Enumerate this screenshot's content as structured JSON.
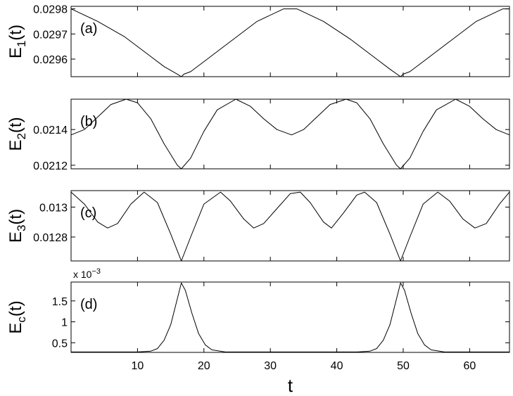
{
  "chart_data": [
    {
      "type": "line",
      "panel_label": "(a)",
      "ylabel": "E",
      "ylabel_sub": "1",
      "ylabel_suffix": "(t)",
      "xlim": [
        0,
        66
      ],
      "ylim": [
        0.02953,
        0.02981
      ],
      "yticks": [
        0.0296,
        0.0297,
        0.0298
      ],
      "ytick_labels": [
        "0.0296",
        "0.0297",
        "0.0298"
      ],
      "series": [
        {
          "x": [
            0,
            4,
            8,
            12,
            14,
            16,
            16.6,
            17,
            18,
            20,
            24,
            28,
            32,
            33.2,
            34,
            38,
            42,
            46,
            48,
            49.6,
            50,
            51,
            53,
            57,
            61,
            65,
            66
          ],
          "y": [
            0.0298,
            0.02975,
            0.02969,
            0.02961,
            0.02957,
            0.02954,
            0.02953,
            0.02954,
            0.02955,
            0.02959,
            0.02967,
            0.02975,
            0.0298,
            0.0298,
            0.0298,
            0.02975,
            0.02968,
            0.0296,
            0.02956,
            0.02953,
            0.02954,
            0.02955,
            0.02959,
            0.02967,
            0.02975,
            0.0298,
            0.0298
          ]
        }
      ]
    },
    {
      "type": "line",
      "panel_label": "(b)",
      "ylabel": "E",
      "ylabel_sub": "2",
      "ylabel_suffix": "(t)",
      "xlim": [
        0,
        66
      ],
      "ylim": [
        0.02118,
        0.02157
      ],
      "yticks": [
        0.0212,
        0.0214
      ],
      "ytick_labels": [
        "0.0212",
        "0.0214"
      ],
      "series": [
        {
          "x": [
            0,
            2,
            4,
            6,
            8.3,
            10,
            12,
            14,
            16,
            16.6,
            18,
            20,
            22,
            24.8,
            27,
            29,
            31,
            33.2,
            35,
            37,
            39,
            41.4,
            43,
            45,
            47,
            49,
            49.6,
            51,
            53,
            55,
            57.9,
            60,
            62,
            64,
            66
          ],
          "y": [
            0.02137,
            0.0214,
            0.02147,
            0.02154,
            0.02157,
            0.02155,
            0.02146,
            0.02132,
            0.0212,
            0.02118,
            0.02124,
            0.02139,
            0.02151,
            0.02157,
            0.02153,
            0.02146,
            0.0214,
            0.02137,
            0.0214,
            0.02147,
            0.02154,
            0.02157,
            0.02155,
            0.02146,
            0.02132,
            0.0212,
            0.02118,
            0.02124,
            0.02139,
            0.02151,
            0.02157,
            0.02153,
            0.02146,
            0.0214,
            0.02137
          ]
        }
      ]
    },
    {
      "type": "line",
      "panel_label": "(c)",
      "ylabel": "E",
      "ylabel_sub": "3",
      "ylabel_suffix": "(t)",
      "xlim": [
        0,
        66
      ],
      "ylim": [
        0.01264,
        0.01311
      ],
      "yticks": [
        0.0128,
        0.013
      ],
      "ytick_labels": [
        "0.0128",
        "0.013"
      ],
      "series": [
        {
          "x": [
            0,
            2,
            4,
            5.5,
            7,
            9,
            11,
            13,
            15,
            16.6,
            18,
            20,
            22.5,
            24,
            26,
            27.5,
            29,
            31,
            33,
            34.5,
            36,
            38,
            39.2,
            41,
            43,
            44.2,
            46,
            48,
            49.6,
            51,
            53,
            55.2,
            57,
            59,
            60.8,
            62.5,
            64.5,
            66
          ],
          "y": [
            0.0131,
            0.01302,
            0.0129,
            0.01286,
            0.01289,
            0.01302,
            0.0131,
            0.01303,
            0.01282,
            0.01264,
            0.0128,
            0.01302,
            0.0131,
            0.01304,
            0.01292,
            0.01286,
            0.01289,
            0.01299,
            0.01309,
            0.0131,
            0.01303,
            0.0129,
            0.01286,
            0.01296,
            0.01308,
            0.0131,
            0.01303,
            0.01282,
            0.01264,
            0.0128,
            0.01302,
            0.0131,
            0.01304,
            0.01292,
            0.01286,
            0.01289,
            0.01302,
            0.0131
          ]
        }
      ]
    },
    {
      "type": "line",
      "panel_label": "(d)",
      "ylabel": "E",
      "ylabel_sub": "c",
      "ylabel_suffix": "(t)",
      "multiplier": "x 10",
      "multiplier_exp": "−3",
      "xlim": [
        0,
        66
      ],
      "ylim": [
        0.27,
        1.95
      ],
      "yticks": [
        0.5,
        1,
        1.5
      ],
      "ytick_labels": [
        "0.5",
        "1",
        "1.5"
      ],
      "xticks": [
        10,
        20,
        30,
        40,
        50,
        60
      ],
      "xtick_labels": [
        "10",
        "20",
        "30",
        "40",
        "50",
        "60"
      ],
      "xlabel": "t",
      "series": [
        {
          "x": [
            0,
            10,
            12,
            13,
            14,
            15,
            16,
            16.6,
            17.2,
            18.2,
            19.2,
            20.2,
            21.2,
            23.2,
            30,
            40,
            43,
            45,
            46,
            47,
            48,
            49,
            49.6,
            50.2,
            51.2,
            52.2,
            53.2,
            54.2,
            56.2,
            60,
            66
          ],
          "y": [
            0.28,
            0.28,
            0.3,
            0.36,
            0.56,
            0.93,
            1.55,
            1.93,
            1.75,
            1.2,
            0.72,
            0.45,
            0.33,
            0.28,
            0.28,
            0.28,
            0.28,
            0.3,
            0.36,
            0.56,
            0.93,
            1.55,
            1.93,
            1.75,
            1.2,
            0.72,
            0.45,
            0.33,
            0.28,
            0.28,
            0.28
          ]
        }
      ]
    }
  ]
}
